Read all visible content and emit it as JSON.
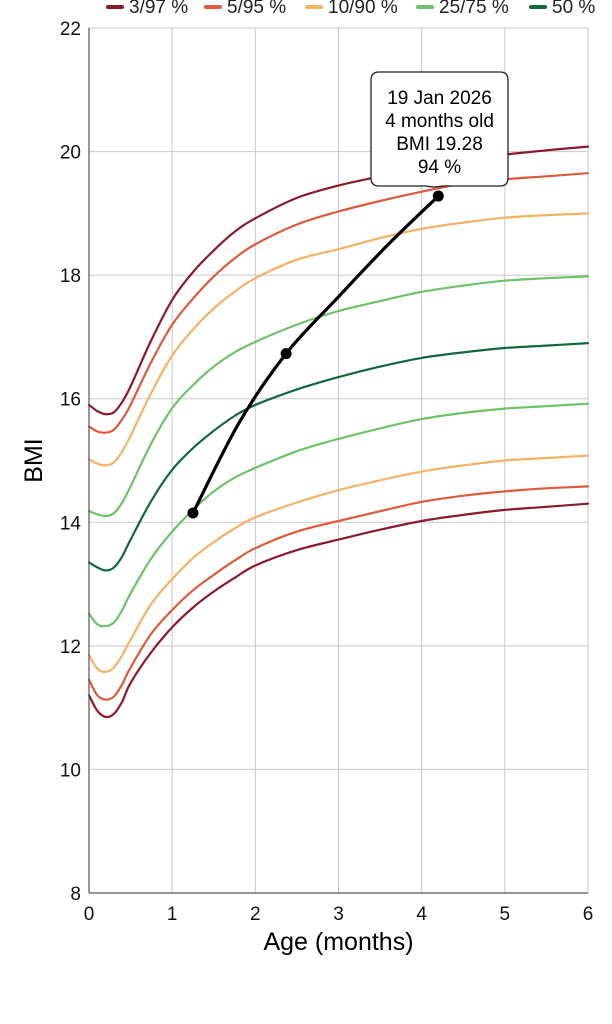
{
  "chart_data": {
    "type": "line",
    "xlabel": "Age (months)",
    "ylabel": "BMI",
    "xlim": [
      0,
      6
    ],
    "ylim": [
      8,
      22
    ],
    "x_ticks": [
      "0",
      "1",
      "2",
      "3",
      "4",
      "5",
      "6"
    ],
    "y_ticks": [
      "8",
      "10",
      "12",
      "14",
      "16",
      "18",
      "20",
      "22"
    ],
    "grid": true,
    "legend_position": "top",
    "legend": [
      {
        "label": "3/97 %",
        "color": "#8b1a2b"
      },
      {
        "label": "5/95 %",
        "color": "#dd5a3c"
      },
      {
        "label": "10/90 %",
        "color": "#f5b264"
      },
      {
        "label": "25/75 %",
        "color": "#6cc36a"
      },
      {
        "label": "50 %",
        "color": "#12683a"
      }
    ],
    "x": [
      0,
      0.1,
      0.2,
      0.3,
      0.4,
      0.5,
      0.75,
      1,
      1.25,
      1.5,
      1.75,
      2,
      2.5,
      3,
      3.5,
      4,
      4.5,
      5,
      5.5,
      6
    ],
    "series": [
      {
        "name": "3/97 %",
        "percentile": 3,
        "color": "#8b1a2b",
        "values": [
          11.2,
          10.95,
          10.85,
          10.9,
          11.1,
          11.4,
          11.9,
          12.3,
          12.62,
          12.88,
          13.1,
          13.3,
          13.55,
          13.72,
          13.88,
          14.02,
          14.12,
          14.2,
          14.25,
          14.3
        ]
      },
      {
        "name": "3/97 %",
        "percentile": 97,
        "color": "#8b1a2b",
        "values": [
          15.9,
          15.8,
          15.75,
          15.78,
          15.95,
          16.2,
          16.95,
          17.6,
          18.05,
          18.4,
          18.7,
          18.92,
          19.25,
          19.45,
          19.6,
          19.75,
          19.85,
          19.95,
          20.02,
          20.08
        ]
      },
      {
        "name": "5/95 %",
        "percentile": 5,
        "color": "#dd5a3c",
        "values": [
          11.45,
          11.2,
          11.13,
          11.18,
          11.38,
          11.65,
          12.2,
          12.58,
          12.9,
          13.15,
          13.38,
          13.58,
          13.85,
          14.02,
          14.18,
          14.33,
          14.43,
          14.5,
          14.55,
          14.58
        ]
      },
      {
        "name": "5/95 %",
        "percentile": 95,
        "color": "#dd5a3c",
        "values": [
          15.55,
          15.47,
          15.45,
          15.5,
          15.67,
          15.9,
          16.6,
          17.2,
          17.62,
          17.98,
          18.27,
          18.5,
          18.82,
          19.03,
          19.2,
          19.35,
          19.48,
          19.55,
          19.6,
          19.65
        ]
      },
      {
        "name": "10/90 %",
        "percentile": 10,
        "color": "#f5b264",
        "values": [
          11.85,
          11.63,
          11.58,
          11.65,
          11.85,
          12.1,
          12.68,
          13.08,
          13.42,
          13.68,
          13.9,
          14.08,
          14.32,
          14.52,
          14.68,
          14.82,
          14.92,
          15.0,
          15.04,
          15.08
        ]
      },
      {
        "name": "10/90 %",
        "percentile": 90,
        "color": "#f5b264",
        "values": [
          15.02,
          14.95,
          14.92,
          14.97,
          15.15,
          15.4,
          16.1,
          16.7,
          17.12,
          17.46,
          17.73,
          17.95,
          18.25,
          18.42,
          18.6,
          18.75,
          18.85,
          18.93,
          18.97,
          19.0
        ]
      },
      {
        "name": "25/75 %",
        "percentile": 25,
        "color": "#6cc36a",
        "values": [
          12.52,
          12.35,
          12.32,
          12.38,
          12.58,
          12.85,
          13.42,
          13.85,
          14.2,
          14.5,
          14.72,
          14.88,
          15.15,
          15.35,
          15.52,
          15.67,
          15.77,
          15.84,
          15.88,
          15.92
        ]
      },
      {
        "name": "25/75 %",
        "percentile": 75,
        "color": "#6cc36a",
        "values": [
          14.18,
          14.13,
          14.1,
          14.15,
          14.32,
          14.58,
          15.28,
          15.85,
          16.22,
          16.52,
          16.75,
          16.92,
          17.2,
          17.42,
          17.58,
          17.73,
          17.83,
          17.91,
          17.95,
          17.98
        ]
      },
      {
        "name": "50 %",
        "percentile": 50,
        "color": "#12683a",
        "values": [
          13.35,
          13.27,
          13.22,
          13.27,
          13.45,
          13.72,
          14.35,
          14.85,
          15.2,
          15.48,
          15.72,
          15.9,
          16.15,
          16.35,
          16.52,
          16.66,
          16.75,
          16.82,
          16.86,
          16.9
        ]
      }
    ],
    "patient": {
      "color": "#000000",
      "points": [
        {
          "x": 1.25,
          "y": 14.15
        },
        {
          "x": 2.37,
          "y": 16.73
        },
        {
          "x": 4.2,
          "y": 19.28
        }
      ],
      "path": [
        {
          "x": 1.25,
          "y": 14.15
        },
        {
          "x": 1.8,
          "y": 15.6
        },
        {
          "x": 2.37,
          "y": 16.73
        },
        {
          "x": 3.0,
          "y": 17.65
        },
        {
          "x": 3.6,
          "y": 18.5
        },
        {
          "x": 4.2,
          "y": 19.28
        }
      ]
    },
    "tooltip": {
      "date": "19 Jan 2026",
      "age": "4 months old",
      "bmi": "BMI 19.28",
      "percentile": "94 %"
    }
  }
}
